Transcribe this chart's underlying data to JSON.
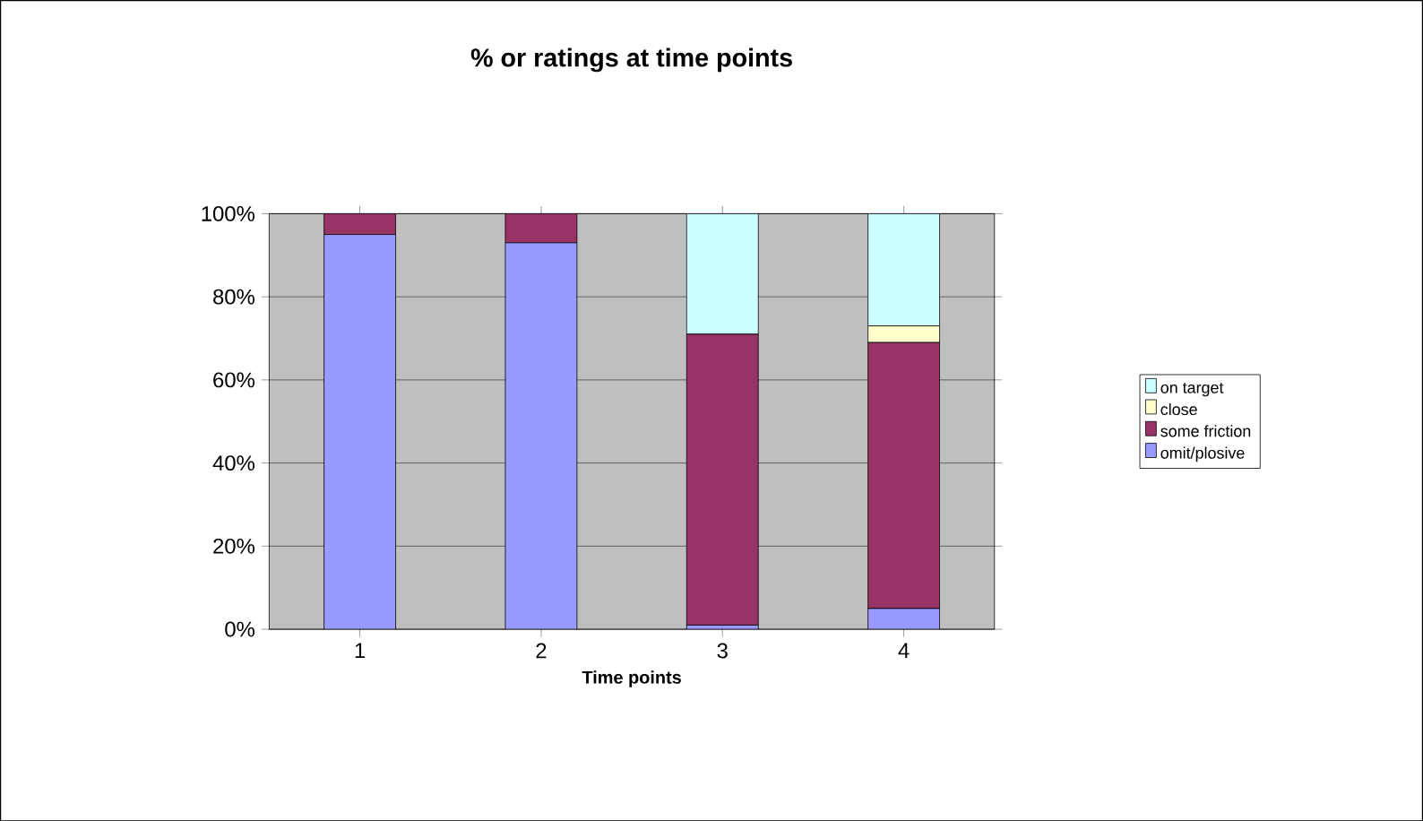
{
  "chart_data": {
    "type": "bar",
    "stacked": true,
    "title": "% or ratings at time points",
    "xlabel": "Time points",
    "categories": [
      "1",
      "2",
      "3",
      "4"
    ],
    "series": [
      {
        "name": "omit/plosive",
        "color": "#9999ff",
        "values": [
          95,
          93,
          1,
          5
        ]
      },
      {
        "name": "some friction",
        "color": "#993366",
        "values": [
          5,
          7,
          70,
          64
        ]
      },
      {
        "name": "close",
        "color": "#ffffcc",
        "values": [
          0,
          0,
          0,
          4
        ]
      },
      {
        "name": "on target",
        "color": "#ccffff",
        "values": [
          0,
          0,
          29,
          27
        ]
      }
    ],
    "ylim": [
      0,
      100
    ],
    "yticks": [
      {
        "value": 0,
        "label": "0%"
      },
      {
        "value": 20,
        "label": "20%"
      },
      {
        "value": 40,
        "label": "40%"
      },
      {
        "value": 60,
        "label": "60%"
      },
      {
        "value": 80,
        "label": "80%"
      },
      {
        "value": 100,
        "label": "100%"
      }
    ],
    "grid": "y",
    "legend": "right"
  }
}
